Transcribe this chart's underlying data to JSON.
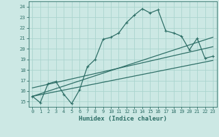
{
  "xlabel": "Humidex (Indice chaleur)",
  "bg_color": "#cce8e4",
  "grid_color": "#aad4ce",
  "line_color": "#2d6e66",
  "xlim": [
    -0.5,
    23.5
  ],
  "ylim": [
    14.5,
    24.5
  ],
  "xticks": [
    0,
    1,
    2,
    3,
    4,
    5,
    6,
    7,
    8,
    9,
    10,
    11,
    12,
    13,
    14,
    15,
    16,
    17,
    18,
    19,
    20,
    21,
    22,
    23
  ],
  "yticks": [
    15,
    16,
    17,
    18,
    19,
    20,
    21,
    22,
    23,
    24
  ],
  "series1_x": [
    0,
    1,
    2,
    3,
    4,
    5,
    6,
    7,
    8,
    9,
    10,
    11,
    12,
    13,
    14,
    15,
    16,
    17,
    18,
    19,
    20,
    21,
    22,
    23
  ],
  "series1_y": [
    15.5,
    14.9,
    16.7,
    16.9,
    15.7,
    14.8,
    16.1,
    18.3,
    19.0,
    20.9,
    21.1,
    21.5,
    22.5,
    23.2,
    23.8,
    23.4,
    23.7,
    21.7,
    21.5,
    21.2,
    19.9,
    21.0,
    19.1,
    19.3
  ],
  "line2_x": [
    0,
    23
  ],
  "line2_y": [
    15.5,
    21.1
  ],
  "line3_x": [
    0,
    23
  ],
  "line3_y": [
    16.3,
    20.2
  ],
  "line4_x": [
    0,
    23
  ],
  "line4_y": [
    15.5,
    18.9
  ]
}
